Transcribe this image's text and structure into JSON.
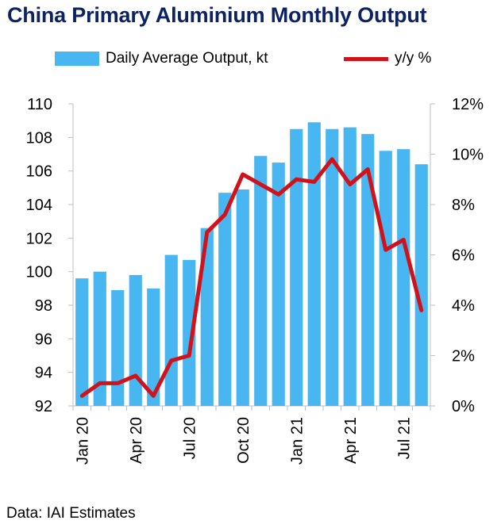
{
  "title": "China Primary Aluminium Monthly Output",
  "footer": "Data: IAI Estimates",
  "colors": {
    "title": "#0d2260",
    "bar": "#48b7f1",
    "line": "#d0121b"
  },
  "chart_data": {
    "type": "bar",
    "title": "China Primary Aluminium Monthly Output",
    "grid": false,
    "legend_position": "top",
    "months": [
      "Jan 20",
      "Feb 20",
      "Mar 20",
      "Apr 20",
      "May 20",
      "Jun 20",
      "Jul 20",
      "Aug 20",
      "Sep 20",
      "Oct 20",
      "Nov 20",
      "Dec 20",
      "Jan 21",
      "Feb 21",
      "Mar 21",
      "Apr 21",
      "May 21",
      "Jun 21",
      "Jul 21",
      "Aug 21"
    ],
    "x_tick_labels": [
      "Jan 20",
      "Apr 20",
      "Jul 20",
      "Oct 20",
      "Jan 21",
      "Apr 21",
      "Jul 21"
    ],
    "y_left": {
      "ticks": [
        "92",
        "94",
        "96",
        "98",
        "100",
        "102",
        "104",
        "106",
        "108",
        "110"
      ],
      "ylim": [
        92,
        110
      ]
    },
    "y_right": {
      "ticks": [
        "0%",
        "2%",
        "4%",
        "6%",
        "8%",
        "10%",
        "12%"
      ],
      "ylim": [
        0,
        12
      ]
    },
    "series": [
      {
        "name": "Daily Average Output, kt",
        "type": "bar",
        "axis": "left",
        "values": [
          99.6,
          100.0,
          98.9,
          99.8,
          99.0,
          101.0,
          100.7,
          102.6,
          104.7,
          104.9,
          106.9,
          106.5,
          108.5,
          108.9,
          108.5,
          108.6,
          108.2,
          107.2,
          107.3,
          106.4
        ]
      },
      {
        "name": "y/y %",
        "type": "line",
        "axis": "right",
        "values": [
          0.4,
          0.9,
          0.9,
          1.2,
          0.4,
          1.8,
          2.0,
          6.9,
          7.6,
          9.2,
          8.8,
          8.4,
          9.0,
          8.9,
          9.8,
          8.8,
          9.4,
          6.2,
          6.6,
          3.8
        ]
      }
    ]
  }
}
